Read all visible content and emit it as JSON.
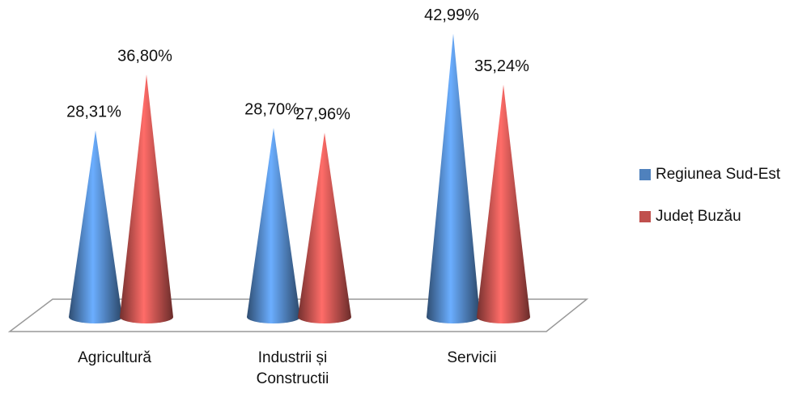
{
  "chart_data": {
    "type": "cone",
    "categories": [
      "Agricultură",
      "Industrii și Constructii",
      "Servicii"
    ],
    "series": [
      {
        "name": "Regiunea Sud-Est",
        "color": "#4f81bd",
        "values": [
          28.31,
          28.7,
          42.99
        ],
        "value_labels": [
          "28,31%",
          "28,70%",
          "42,99%"
        ]
      },
      {
        "name": "Județ Buzău",
        "color": "#c0504d",
        "values": [
          36.8,
          27.96,
          35.24
        ],
        "value_labels": [
          "36,80%",
          "27,96%",
          "35,24%"
        ]
      }
    ],
    "legend": "right"
  }
}
